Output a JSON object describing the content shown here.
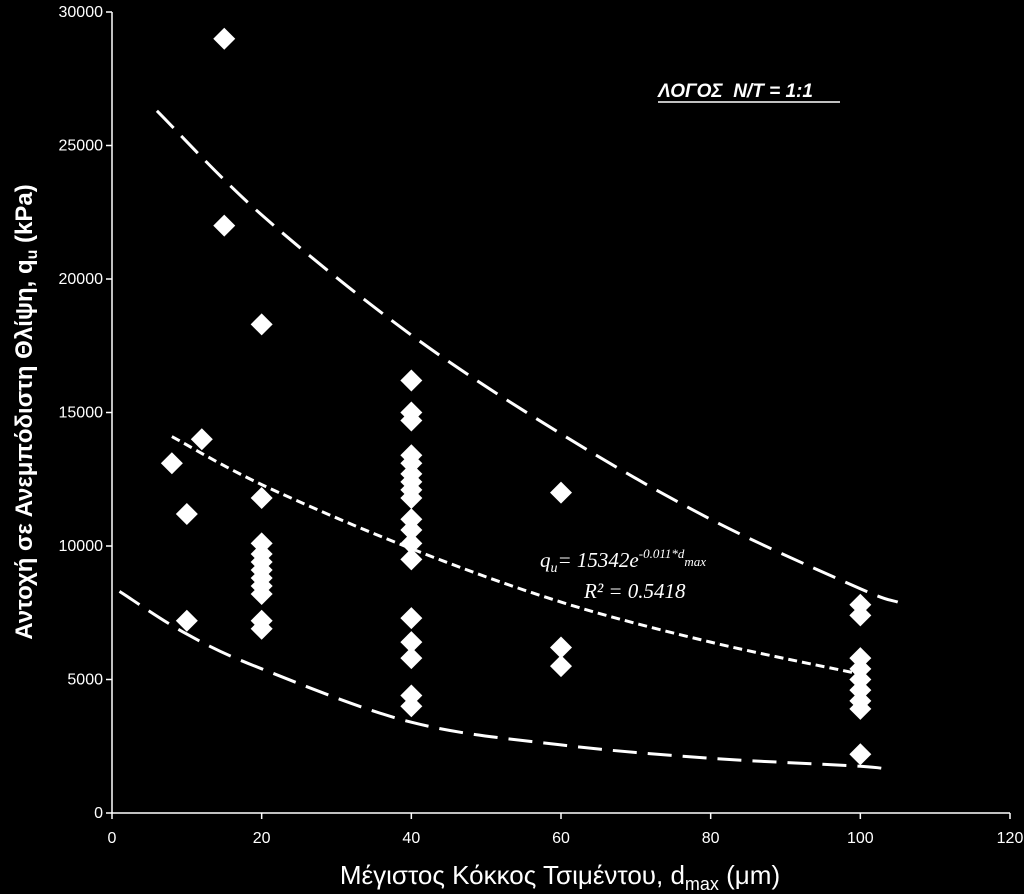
{
  "chart_data": {
    "type": "scatter",
    "title": "",
    "xlabel": "Μέγιστος Κόκκος Τσιμέντου, d",
    "xlabel_sub": "max",
    "xlabel_unit": " (μm)",
    "ylabel": "Αντοχή σε Ανεμπόδιστη Θλίψη, q",
    "ylabel_sub": "u",
    "ylabel_unit": " (kPa)",
    "xlim": [
      0,
      120
    ],
    "ylim": [
      0,
      30000
    ],
    "xticks": [
      0,
      20,
      40,
      60,
      80,
      100,
      120
    ],
    "yticks": [
      0,
      5000,
      10000,
      15000,
      20000,
      25000,
      30000
    ],
    "grid": false,
    "annotation": "ΛΟΓΟΣ  Ν/Τ = 1:1",
    "equation": {
      "q": "q",
      "q_sub": "u",
      "body": "= 15342e",
      "exp": "-0.011*d",
      "exp_sub": "max",
      "r2": "R² = 0.5418"
    },
    "points": [
      {
        "x": 15,
        "y": 29000
      },
      {
        "x": 15,
        "y": 22000
      },
      {
        "x": 8,
        "y": 13100
      },
      {
        "x": 12,
        "y": 14000
      },
      {
        "x": 10,
        "y": 11200
      },
      {
        "x": 10,
        "y": 7200
      },
      {
        "x": 20,
        "y": 18300
      },
      {
        "x": 20,
        "y": 11800
      },
      {
        "x": 20,
        "y": 10100
      },
      {
        "x": 20,
        "y": 9700
      },
      {
        "x": 20,
        "y": 9400
      },
      {
        "x": 20,
        "y": 9100
      },
      {
        "x": 20,
        "y": 8800
      },
      {
        "x": 20,
        "y": 8500
      },
      {
        "x": 20,
        "y": 8200
      },
      {
        "x": 20,
        "y": 7200
      },
      {
        "x": 20,
        "y": 6900
      },
      {
        "x": 40,
        "y": 16200
      },
      {
        "x": 40,
        "y": 15000
      },
      {
        "x": 40,
        "y": 14700
      },
      {
        "x": 40,
        "y": 13400
      },
      {
        "x": 40,
        "y": 13100
      },
      {
        "x": 40,
        "y": 12700
      },
      {
        "x": 40,
        "y": 12400
      },
      {
        "x": 40,
        "y": 12100
      },
      {
        "x": 40,
        "y": 11800
      },
      {
        "x": 40,
        "y": 11000
      },
      {
        "x": 40,
        "y": 10600
      },
      {
        "x": 40,
        "y": 10100
      },
      {
        "x": 40,
        "y": 9500
      },
      {
        "x": 40,
        "y": 7300
      },
      {
        "x": 40,
        "y": 6400
      },
      {
        "x": 40,
        "y": 5800
      },
      {
        "x": 40,
        "y": 4400
      },
      {
        "x": 40,
        "y": 4000
      },
      {
        "x": 60,
        "y": 12000
      },
      {
        "x": 60,
        "y": 6200
      },
      {
        "x": 60,
        "y": 5500
      },
      {
        "x": 100,
        "y": 7800
      },
      {
        "x": 100,
        "y": 7400
      },
      {
        "x": 100,
        "y": 5800
      },
      {
        "x": 100,
        "y": 5400
      },
      {
        "x": 100,
        "y": 5000
      },
      {
        "x": 100,
        "y": 4600
      },
      {
        "x": 100,
        "y": 4200
      },
      {
        "x": 100,
        "y": 3900
      },
      {
        "x": 100,
        "y": 2200
      }
    ],
    "curves": [
      {
        "name": "upper-bound",
        "x": [
          6,
          20,
          40,
          60,
          80,
          100,
          105
        ],
        "y": [
          26300,
          22400,
          17900,
          14200,
          11000,
          8400,
          7900
        ],
        "dash": "long"
      },
      {
        "name": "regression-fit",
        "x": [
          8,
          20,
          40,
          60,
          80,
          100
        ],
        "y": [
          14100,
          12300,
          9900,
          7900,
          6400,
          5200
        ],
        "dash": "short"
      },
      {
        "name": "lower-bound",
        "x": [
          1,
          10,
          20,
          40,
          60,
          80,
          100,
          104
        ],
        "y": [
          8300,
          6700,
          5400,
          3400,
          2550,
          2050,
          1750,
          1600
        ],
        "dash": "long"
      }
    ]
  }
}
